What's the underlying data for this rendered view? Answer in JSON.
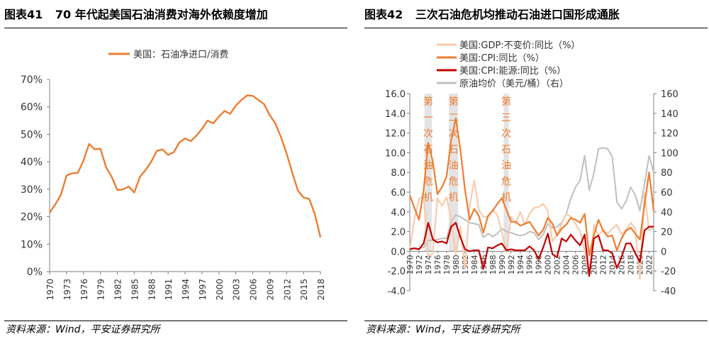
{
  "left_panel": {
    "figure_label": "图表41",
    "title": "70 年代起美国石油消费对海外依赖度增加",
    "source": "资料来源：Wind，平安证券研究所"
  },
  "right_panel": {
    "figure_label": "图表42",
    "title": "三次石油危机均推动石油进口国形成通胀",
    "source": "资料来源：Wind，平安证券研究所"
  },
  "chart_data": [
    {
      "type": "line",
      "legend_position": "top-center",
      "series": [
        {
          "name": "美国：石油净进口/消费",
          "color": "#ED7D31",
          "x": [
            1970,
            1971,
            1972,
            1973,
            1974,
            1975,
            1976,
            1977,
            1978,
            1979,
            1980,
            1981,
            1982,
            1983,
            1984,
            1985,
            1986,
            1987,
            1988,
            1989,
            1990,
            1991,
            1992,
            1993,
            1994,
            1995,
            1996,
            1997,
            1998,
            1999,
            2000,
            2001,
            2002,
            2003,
            2004,
            2005,
            2006,
            2007,
            2008,
            2009,
            2010,
            2011,
            2012,
            2013,
            2014,
            2015,
            2016,
            2017,
            2018
          ],
          "values": [
            21.5,
            24.5,
            28.0,
            35.0,
            35.8,
            36.0,
            40.5,
            46.5,
            44.5,
            44.8,
            38.0,
            34.5,
            29.7,
            29.9,
            31.0,
            28.8,
            34.5,
            37.0,
            40.0,
            44.0,
            44.5,
            42.5,
            43.5,
            47.0,
            48.5,
            47.5,
            49.5,
            52.0,
            55.0,
            54.0,
            56.5,
            58.5,
            57.5,
            60.5,
            62.5,
            64.2,
            64.0,
            62.5,
            61.0,
            57.0,
            54.0,
            49.0,
            43.0,
            36.0,
            29.5,
            27.0,
            26.5,
            21.0,
            12.5
          ]
        }
      ],
      "xlim": [
        1970,
        2018
      ],
      "x_ticks": [
        "1970",
        "1973",
        "1976",
        "1979",
        "1982",
        "1985",
        "1988",
        "1991",
        "1994",
        "1997",
        "2000",
        "2003",
        "2006",
        "2009",
        "2012",
        "2015",
        "2018"
      ],
      "ylim": [
        0,
        70
      ],
      "y_ticks": [
        "0%",
        "10%",
        "20%",
        "30%",
        "40%",
        "50%",
        "60%",
        "70%"
      ],
      "grid": false
    },
    {
      "type": "line",
      "legend_position": "top-left",
      "x_ticks": [
        "1970",
        "1972",
        "1974",
        "1976",
        "1978",
        "1980",
        "1982",
        "1984",
        "1986",
        "1988",
        "1990",
        "1992",
        "1994",
        "1996",
        "1998",
        "2000",
        "2002",
        "2004",
        "2006",
        "2008",
        "2010",
        "2012",
        "2014",
        "2016",
        "2018",
        "2020",
        "2022"
      ],
      "xlim": [
        1970,
        2023
      ],
      "ylim_left": [
        -4.0,
        16.0
      ],
      "y_ticks_left": [
        "-4.0",
        "-2.0",
        "0.0",
        "2.0",
        "4.0",
        "6.0",
        "8.0",
        "10.0",
        "12.0",
        "14.0",
        "16.0"
      ],
      "ylim_right": [
        -40,
        160
      ],
      "y_ticks_right": [
        "-40",
        "-20",
        "0",
        "20",
        "40",
        "60",
        "80",
        "100",
        "120",
        "140",
        "160"
      ],
      "grid": false,
      "crisis_bands": [
        {
          "label": "第一次石油危机",
          "x_start": 1973.2,
          "x_end": 1974.8,
          "label_color": "#ED7D31"
        },
        {
          "label": "第二次石油危机",
          "x_start": 1978.5,
          "x_end": 1980.5,
          "label_color": "#ED7D31"
        },
        {
          "label": "第三次石油危机",
          "x_start": 1990.4,
          "x_end": 1991.5,
          "label_color": "#ED7D31"
        }
      ],
      "series": [
        {
          "name": "美国:GDP:不变价:同比（%）",
          "axis": "left",
          "color": "#F8CBAD",
          "x": [
            1970,
            1971,
            1972,
            1973,
            1974,
            1975,
            1976,
            1977,
            1978,
            1979,
            1980,
            1981,
            1982,
            1983,
            1984,
            1985,
            1986,
            1987,
            1988,
            1989,
            1990,
            1991,
            1992,
            1993,
            1994,
            1995,
            1996,
            1997,
            1998,
            1999,
            2000,
            2001,
            2002,
            2003,
            2004,
            2005,
            2006,
            2007,
            2008,
            2009,
            2010,
            2011,
            2012,
            2013,
            2014,
            2015,
            2016,
            2017,
            2018,
            2019,
            2020,
            2021,
            2022,
            2023
          ],
          "values": [
            0.2,
            3.3,
            5.3,
            5.6,
            -0.5,
            -0.2,
            5.4,
            4.6,
            5.5,
            3.2,
            -0.3,
            2.5,
            -1.8,
            4.6,
            7.2,
            4.2,
            3.5,
            3.5,
            4.2,
            3.7,
            1.9,
            -0.1,
            3.5,
            2.8,
            4.0,
            2.7,
            3.8,
            4.4,
            4.5,
            4.8,
            4.1,
            1.0,
            1.7,
            2.8,
            3.8,
            3.5,
            2.8,
            2.0,
            0.1,
            -2.6,
            2.7,
            1.6,
            2.2,
            1.8,
            2.3,
            2.7,
            1.7,
            2.2,
            2.9,
            2.3,
            -2.8,
            5.9,
            2.1,
            2.5
          ]
        },
        {
          "name": "美国:CPI:同比（%）",
          "axis": "left",
          "color": "#ED7D31",
          "x": [
            1970,
            1971,
            1972,
            1973,
            1974,
            1975,
            1976,
            1977,
            1978,
            1979,
            1980,
            1981,
            1982,
            1983,
            1984,
            1985,
            1986,
            1987,
            1988,
            1989,
            1990,
            1991,
            1992,
            1993,
            1994,
            1995,
            1996,
            1997,
            1998,
            1999,
            2000,
            2001,
            2002,
            2003,
            2004,
            2005,
            2006,
            2007,
            2008,
            2009,
            2010,
            2011,
            2012,
            2013,
            2014,
            2015,
            2016,
            2017,
            2018,
            2019,
            2020,
            2021,
            2022,
            2023
          ],
          "values": [
            5.7,
            4.4,
            3.2,
            6.2,
            11.0,
            9.1,
            5.8,
            6.5,
            7.6,
            11.3,
            13.5,
            10.3,
            6.2,
            3.2,
            4.3,
            3.6,
            1.9,
            3.6,
            4.1,
            4.8,
            5.4,
            4.2,
            3.0,
            3.0,
            2.6,
            2.8,
            3.0,
            2.3,
            1.6,
            2.2,
            3.4,
            2.8,
            1.6,
            2.3,
            2.7,
            3.4,
            3.2,
            2.9,
            3.8,
            -0.4,
            1.6,
            3.2,
            2.1,
            1.5,
            1.6,
            0.1,
            1.3,
            2.1,
            2.4,
            1.8,
            1.2,
            4.7,
            8.0,
            4.1
          ]
        },
        {
          "name": "美国:CPI:能源:同比（%）",
          "axis": "left",
          "color": "#C00000",
          "x": [
            1970,
            1971,
            1972,
            1973,
            1974,
            1975,
            1976,
            1977,
            1978,
            1979,
            1980,
            1981,
            1982,
            1983,
            1984,
            1985,
            1986,
            1987,
            1988,
            1989,
            1990,
            1991,
            1992,
            1993,
            1994,
            1995,
            1996,
            1997,
            1998,
            1999,
            2000,
            2001,
            2002,
            2003,
            2004,
            2005,
            2006,
            2007,
            2008,
            2009,
            2010,
            2011,
            2012,
            2013,
            2014,
            2015,
            2016,
            2017,
            2018,
            2019,
            2020,
            2021,
            2022,
            2023
          ],
          "values": [
            0.2,
            0.3,
            0.2,
            0.8,
            2.9,
            1.2,
            0.9,
            1.0,
            0.8,
            2.5,
            2.9,
            1.4,
            0.2,
            0.0,
            0.1,
            0.1,
            -1.8,
            0.4,
            0.3,
            0.6,
            0.8,
            0.1,
            0.2,
            0.1,
            0.1,
            0.1,
            0.5,
            0.1,
            -0.8,
            0.4,
            1.8,
            -0.3,
            -0.6,
            1.3,
            1.0,
            1.7,
            1.1,
            0.6,
            1.7,
            -2.5,
            1.3,
            1.6,
            0.1,
            0.1,
            -0.2,
            -1.7,
            -0.6,
            0.8,
            0.8,
            -0.2,
            -1.1,
            2.1,
            2.5,
            2.5
          ]
        },
        {
          "name": "原油均价（美元/桶）（右）",
          "axis": "right",
          "color": "#BFBFBF",
          "x": [
            1970,
            1971,
            1972,
            1973,
            1974,
            1975,
            1976,
            1977,
            1978,
            1979,
            1980,
            1981,
            1982,
            1983,
            1984,
            1985,
            1986,
            1987,
            1988,
            1989,
            1990,
            1991,
            1992,
            1993,
            1994,
            1995,
            1996,
            1997,
            1998,
            1999,
            2000,
            2001,
            2002,
            2003,
            2004,
            2005,
            2006,
            2007,
            2008,
            2009,
            2010,
            2011,
            2012,
            2013,
            2014,
            2015,
            2016,
            2017,
            2018,
            2019,
            2020,
            2021,
            2022,
            2023
          ],
          "values": [
            3,
            3,
            3,
            4,
            11,
            11,
            12,
            13,
            13,
            30,
            37,
            35,
            32,
            29,
            28,
            27,
            14,
            18,
            15,
            18,
            23,
            20,
            19,
            17,
            16,
            17,
            20,
            19,
            12,
            17,
            28,
            24,
            25,
            29,
            38,
            54,
            65,
            72,
            97,
            62,
            79,
            104,
            105,
            104,
            96,
            50,
            43,
            51,
            65,
            57,
            41,
            68,
            97,
            80
          ]
        }
      ]
    }
  ]
}
